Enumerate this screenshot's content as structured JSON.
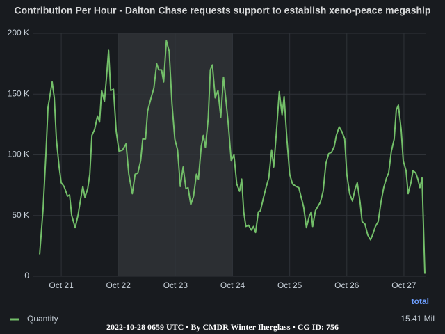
{
  "chart_data": {
    "type": "line",
    "title": "Contribution Per Hour - Dalton Chase requests support to establish xeno-peace megaship",
    "footer": "2022-10-28 0659 UTC • By CMDR Winter Iherglass • CG ID: 756",
    "legend_column": "total",
    "highlight": [
      22,
      24
    ],
    "x": [
      20.622,
      20.683,
      20.732,
      20.768,
      20.817,
      20.841,
      20.878,
      20.915,
      20.963,
      21,
      21.049,
      21.11,
      21.146,
      21.183,
      21.244,
      21.293,
      21.341,
      21.378,
      21.415,
      21.463,
      21.5,
      21.537,
      21.585,
      21.634,
      21.671,
      21.707,
      21.756,
      21.793,
      21.829,
      21.866,
      21.915,
      21.963,
      22.012,
      22.073,
      22.134,
      22.183,
      22.244,
      22.293,
      22.341,
      22.39,
      22.427,
      22.476,
      22.512,
      22.573,
      22.622,
      22.671,
      22.707,
      22.756,
      22.793,
      22.841,
      22.89,
      22.939,
      22.988,
      23.037,
      23.085,
      23.134,
      23.183,
      23.22,
      23.268,
      23.317,
      23.366,
      23.402,
      23.451,
      23.488,
      23.524,
      23.573,
      23.61,
      23.646,
      23.695,
      23.744,
      23.793,
      23.841,
      23.89,
      23.927,
      23.976,
      24.024,
      24.073,
      24.122,
      24.159,
      24.195,
      24.232,
      24.28,
      24.329,
      24.366,
      24.402,
      24.451,
      24.488,
      24.537,
      24.585,
      24.634,
      24.683,
      24.72,
      24.768,
      24.817,
      24.866,
      24.902,
      24.951,
      25,
      25.049,
      25.11,
      25.159,
      25.207,
      25.244,
      25.293,
      25.341,
      25.378,
      25.402,
      25.451,
      25.488,
      25.537,
      25.585,
      25.634,
      25.683,
      25.732,
      25.78,
      25.817,
      25.866,
      25.915,
      25.963,
      26,
      26.049,
      26.098,
      26.146,
      26.183,
      26.232,
      26.268,
      26.317,
      26.366,
      26.415,
      26.451,
      26.5,
      26.549,
      26.598,
      26.646,
      26.695,
      26.732,
      26.78,
      26.829,
      26.866,
      26.902,
      26.951,
      26.988,
      27.037,
      27.073,
      27.122,
      27.159,
      27.207,
      27.244,
      27.28,
      27.317,
      27.366
    ],
    "series": [
      {
        "name": "Quantity",
        "color": "#73bf69",
        "total_label": "15.41 Mil",
        "values": [
          18000,
          56000,
          101000,
          139000,
          153000,
          160000,
          147000,
          113000,
          90000,
          77000,
          74000,
          66000,
          67000,
          50000,
          40000,
          50000,
          64000,
          74000,
          65000,
          72000,
          84000,
          116000,
          121000,
          132000,
          127000,
          153000,
          144000,
          164000,
          186000,
          153000,
          154000,
          119000,
          103000,
          104000,
          109000,
          84000,
          68000,
          84000,
          85000,
          95000,
          113000,
          113000,
          136000,
          147000,
          155000,
          175000,
          170000,
          170000,
          160000,
          194000,
          185000,
          142000,
          113000,
          104000,
          74000,
          90000,
          72000,
          73000,
          59000,
          66000,
          84000,
          80000,
          107000,
          116000,
          106000,
          130000,
          170000,
          174000,
          147000,
          153000,
          131000,
          164000,
          142000,
          124000,
          95000,
          100000,
          76000,
          70000,
          80000,
          53000,
          41000,
          42000,
          38000,
          41000,
          36000,
          53000,
          54000,
          64000,
          73000,
          81000,
          104000,
          90000,
          119000,
          152000,
          133000,
          148000,
          113000,
          84000,
          76000,
          74000,
          73000,
          64000,
          57000,
          40000,
          49000,
          53000,
          41000,
          54000,
          57000,
          61000,
          70000,
          93000,
          101000,
          102000,
          107000,
          116000,
          123000,
          119000,
          113000,
          84000,
          68000,
          62000,
          72000,
          77000,
          61000,
          45000,
          43000,
          34000,
          30000,
          34000,
          41000,
          45000,
          61000,
          73000,
          81000,
          85000,
          103000,
          113000,
          137000,
          141000,
          121000,
          95000,
          87000,
          68000,
          77000,
          87000,
          85000,
          80000,
          73000,
          81000,
          2000
        ]
      }
    ],
    "xlim": [
      20.512,
      27.378
    ],
    "xticks": [
      {
        "value": 21,
        "label": "Oct 21"
      },
      {
        "value": 22,
        "label": "Oct 22"
      },
      {
        "value": 23,
        "label": "Oct 23"
      },
      {
        "value": 24,
        "label": "Oct 24"
      },
      {
        "value": 25,
        "label": "Oct 25"
      },
      {
        "value": 26,
        "label": "Oct 26"
      },
      {
        "value": 27,
        "label": "Oct 27"
      }
    ],
    "ylim": [
      0,
      200000
    ],
    "yticks": [
      0,
      {
        "value": 50000,
        "label": "50 K"
      },
      {
        "value": 100000,
        "label": "100 K"
      },
      {
        "value": 150000,
        "label": "150 K"
      },
      {
        "value": 200000,
        "label": "200 K"
      }
    ],
    "grid": true
  }
}
